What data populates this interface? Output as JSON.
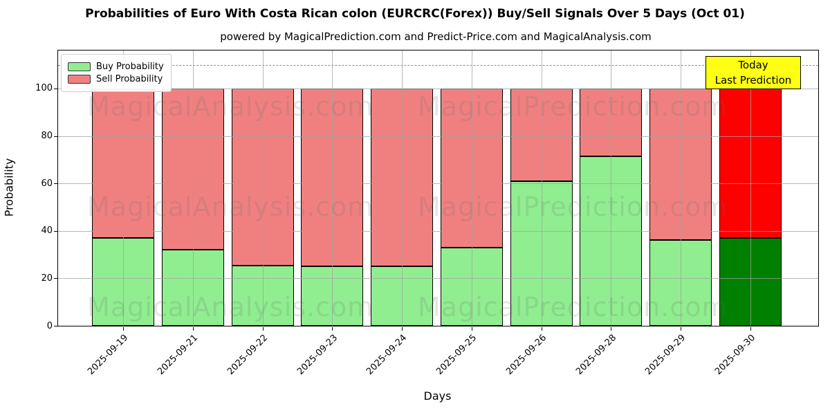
{
  "header": {
    "title": "Probabilities of Euro With Costa Rican colon (EURCRC(Forex)) Buy/Sell Signals Over 5 Days (Oct 01)",
    "subtitle": "powered by MagicalPrediction.com and Predict-Price.com and MagicalAnalysis.com"
  },
  "annotation": {
    "line1": "Today",
    "line2": "Last Prediction",
    "background": "#ffff00"
  },
  "legend": {
    "items": [
      {
        "label": "Buy Probability",
        "color": "#90ee90"
      },
      {
        "label": "Sell Probability",
        "color": "#f08080"
      }
    ]
  },
  "watermarks": {
    "left_text": "MagicalAnalysis.com",
    "right_text": "MagicalPrediction.com"
  },
  "chart_data": {
    "type": "bar",
    "stacked": true,
    "title": "Probabilities of Euro With Costa Rican colon (EURCRC(Forex)) Buy/Sell Signals Over 5 Days (Oct 01)",
    "xlabel": "Days",
    "ylabel": "Probability",
    "categories": [
      "2025-09-19",
      "2025-09-21",
      "2025-09-22",
      "2025-09-23",
      "2025-09-24",
      "2025-09-25",
      "2025-09-26",
      "2025-09-28",
      "2025-09-29",
      "2025-09-30"
    ],
    "series": [
      {
        "name": "Buy Probability",
        "color": "#90ee90",
        "today_color": "#008000",
        "values": [
          37,
          32,
          25.5,
          25,
          25,
          33,
          61,
          71.5,
          36,
          37
        ]
      },
      {
        "name": "Sell Probability",
        "color": "#f08080",
        "today_color": "#ff0000",
        "values": [
          63,
          68,
          74.5,
          75,
          75,
          67,
          39,
          28.5,
          64,
          63
        ]
      }
    ],
    "today_index": 9,
    "ylim": [
      0,
      116
    ],
    "yticks": [
      0,
      20,
      40,
      60,
      80,
      100
    ],
    "dashed_line_y": 110,
    "grid": true,
    "legend_position": "upper left",
    "colors": {
      "buy": "#90ee90",
      "sell": "#f08080",
      "today_buy": "#008000",
      "today_sell": "#ff0000",
      "grid": "#a0a0a0",
      "dashed_line": "#8a8a8a",
      "annotation_bg": "#ffff00"
    }
  }
}
